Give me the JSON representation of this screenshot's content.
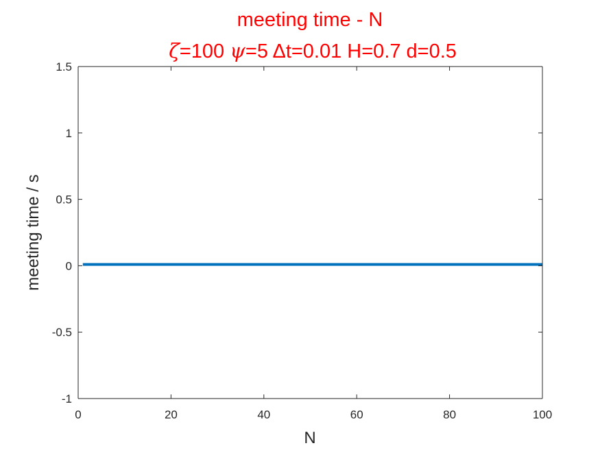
{
  "chart_data": {
    "type": "line",
    "title": "meeting time - N",
    "subtitle_parts": [
      {
        "text": "ζ",
        "greek": true
      },
      {
        "text": "=100 ",
        "greek": false
      },
      {
        "text": "ψ",
        "greek": true
      },
      {
        "text": "=5 Δt=0.01 H=0.7 d=0.5",
        "greek": false
      }
    ],
    "xlabel": "N",
    "ylabel": "meeting time / s",
    "xlim": [
      0,
      100
    ],
    "ylim": [
      -1,
      1.5
    ],
    "xticks": [
      0,
      20,
      40,
      60,
      80,
      100
    ],
    "xtick_labels": [
      "0",
      "20",
      "40",
      "60",
      "80",
      "100"
    ],
    "yticks": [
      -1,
      -0.5,
      0,
      0.5,
      1,
      1.5
    ],
    "ytick_labels": [
      "-1",
      "-0.5",
      "0",
      "0.5",
      "1",
      "1.5"
    ],
    "grid": false,
    "series": [
      {
        "color": "#0072bd",
        "x": [
          1,
          100
        ],
        "y": [
          0.01,
          0.01
        ]
      }
    ]
  }
}
